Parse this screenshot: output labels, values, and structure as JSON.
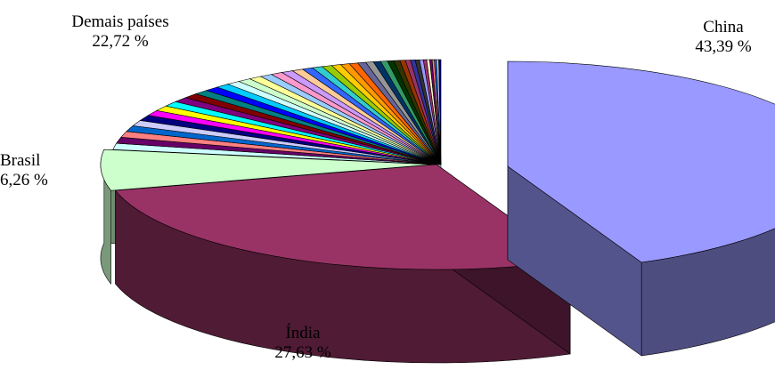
{
  "chart_data": {
    "type": "pie",
    "title": "",
    "slices": [
      {
        "label": "China",
        "value_label": "43,39 %",
        "value": 43.39,
        "color": "#9999ff"
      },
      {
        "label": "Índia",
        "value_label": "27,63 %",
        "value": 27.63,
        "color": "#993366"
      },
      {
        "label": "Brasil",
        "value_label": "6,26 %",
        "value": 6.26,
        "color": "#ccffcc"
      },
      {
        "label": "Demais países",
        "value_label": "22,72 %",
        "value": 22.72,
        "color": "multicolor"
      }
    ],
    "demais_colors": [
      "#ccffff",
      "#660066",
      "#ff8080",
      "#0066cc",
      "#ccccff",
      "#000080",
      "#ff00ff",
      "#ffff00",
      "#00ffff",
      "#800080",
      "#800000",
      "#008080",
      "#0000ff",
      "#00ccff",
      "#ccffff",
      "#ccffcc",
      "#ffff99",
      "#99ccff",
      "#ff99cc",
      "#cc99ff",
      "#ffcc99",
      "#3366ff",
      "#33cccc",
      "#99cc00",
      "#ffcc00",
      "#ff9900",
      "#ff6600",
      "#666699",
      "#969696",
      "#003366",
      "#339966",
      "#003300",
      "#333300",
      "#993300",
      "#993366",
      "#333399",
      "#333333",
      "#9999ff",
      "#993366",
      "#ffffcc",
      "#660066",
      "#ff8080",
      "#0066cc",
      "#ccccff",
      "#000080"
    ],
    "legend": "none",
    "exploded": true,
    "three_d": true
  }
}
